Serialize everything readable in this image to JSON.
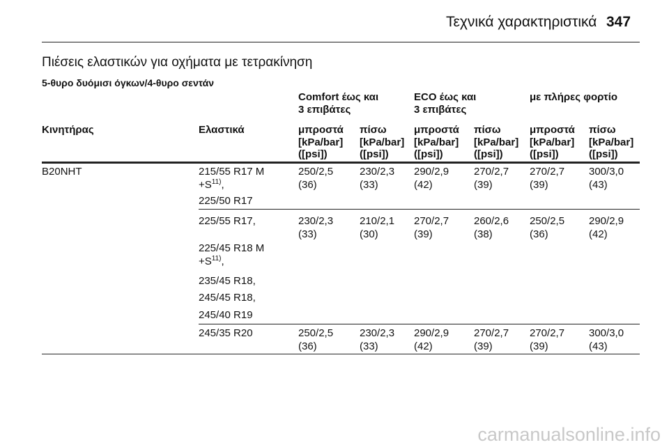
{
  "header": {
    "section": "Τεχνικά χαρακτηριστικά",
    "page": "347"
  },
  "title": "Πιέσεις ελαστικών για οχήματα με τετρακίνηση",
  "subtitle": "5-θυρο δυόμισι όγκων/4-θυρο σεντάν",
  "table": {
    "groups": [
      [
        "Comfort έως και",
        "3 επιβάτες"
      ],
      [
        "ECO έως και",
        "3 επιβάτες"
      ],
      [
        "με πλήρες φορτίο"
      ]
    ],
    "columns": [
      "Κινητήρας",
      "Ελαστικά",
      "μπροστά",
      "πίσω",
      "μπροστά",
      "πίσω",
      "μπροστά",
      "πίσω"
    ],
    "units": [
      [
        "[kPa/bar]",
        "([psi])"
      ],
      [
        "[kPa/bar]",
        "([psi])"
      ],
      [
        "[kPa/bar]",
        "([psi])"
      ],
      [
        "[kPa/bar]",
        "([psi])"
      ],
      [
        "[kPa/bar]",
        "([psi])"
      ],
      [
        "[kPa/bar]",
        "([psi])"
      ]
    ],
    "rows": [
      {
        "engine": "B20NHT",
        "tires": [
          {
            "lines": [
              "215/55 R17 M",
              "+S"
            ],
            "sup": "11)",
            "after": ","
          },
          {
            "lines": [
              "225/50 R17"
            ]
          }
        ],
        "values": [
          [
            "250/2,5",
            "(36)"
          ],
          [
            "230/2,3",
            "(33)"
          ],
          [
            "290/2,9",
            "(42)"
          ],
          [
            "270/2,7",
            "(39)"
          ],
          [
            "270/2,7",
            "(39)"
          ],
          [
            "300/3,0",
            "(43)"
          ]
        ]
      },
      {
        "tires": [
          {
            "lines": [
              "225/55 R17,"
            ]
          },
          {
            "lines": [
              "225/45 R18 M",
              "+S"
            ],
            "sup": "11)",
            "after": ","
          },
          {
            "lines": [
              "235/45 R18,"
            ]
          },
          {
            "lines": [
              "245/45 R18,"
            ]
          },
          {
            "lines": [
              "245/40 R19"
            ]
          }
        ],
        "values": [
          [
            "230/2,3",
            "(33)"
          ],
          [
            "210/2,1",
            "(30)"
          ],
          [
            "270/2,7",
            "(39)"
          ],
          [
            "260/2,6",
            "(38)"
          ],
          [
            "250/2,5",
            "(36)"
          ],
          [
            "290/2,9",
            "(42)"
          ]
        ]
      },
      {
        "tires": [
          {
            "lines": [
              "245/35 R20"
            ]
          }
        ],
        "values": [
          [
            "250/2,5",
            "(36)"
          ],
          [
            "230/2,3",
            "(33)"
          ],
          [
            "290/2,9",
            "(42)"
          ],
          [
            "270/2,7",
            "(39)"
          ],
          [
            "270/2,7",
            "(39)"
          ],
          [
            "300/3,0",
            "(43)"
          ]
        ]
      }
    ]
  },
  "watermark": "carmanualsonline.info"
}
